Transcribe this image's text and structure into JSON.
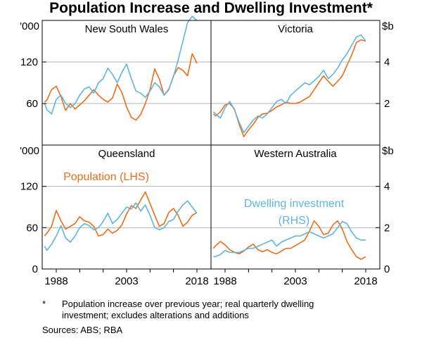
{
  "chart_data": {
    "type": "line",
    "title": "Population Increase and Dwelling Investment*",
    "left_unit": "'000",
    "right_unit": "$b",
    "left_ticks": [
      "0",
      "60",
      "120"
    ],
    "right_ticks": [
      "0",
      "2",
      "4"
    ],
    "left_axis_range": [
      0,
      180
    ],
    "right_axis_range": [
      0,
      6
    ],
    "x_ticks": [
      "1988",
      "2003",
      "2018"
    ],
    "x_axis_range": [
      1985,
      2021
    ],
    "colors": {
      "population": "#ee6c1a",
      "dwelling": "#5db6dc",
      "grid": "#b4b4b4"
    },
    "annotations": {
      "population": "Population (LHS)",
      "dwelling_line1": "Dwelling investment",
      "dwelling_line2": "(RHS)"
    },
    "panels": [
      {
        "name": "New South Wales",
        "series": [
          {
            "name": "Population",
            "axis": "left",
            "x": [
              1985.5,
              1986,
              1987,
              1988,
              1989,
              1990,
              1991,
              1992,
              1993,
              1994,
              1995,
              1996,
              1997,
              1998,
              1999,
              2000,
              2001,
              2002,
              2003,
              2004,
              2005,
              2006,
              2007,
              2008,
              2009,
              2010,
              2011,
              2012,
              2013,
              2014,
              2015,
              2016,
              2017,
              2018
            ],
            "y": [
              62,
              65,
              80,
              85,
              70,
              50,
              60,
              52,
              58,
              64,
              72,
              80,
              72,
              66,
              62,
              68,
              88,
              76,
              55,
              40,
              36,
              44,
              60,
              80,
              110,
              95,
              72,
              80,
              100,
              112,
              108,
              100,
              132,
              118
            ]
          },
          {
            "name": "Dwelling investment",
            "axis": "right",
            "x": [
              1985.5,
              1986,
              1987,
              1988,
              1989,
              1990,
              1991,
              1992,
              1993,
              1994,
              1995,
              1996,
              1997,
              1998,
              1999,
              2000,
              2001,
              2002,
              2003,
              2004,
              2005,
              2006,
              2007,
              2008,
              2009,
              2010,
              2011,
              2012,
              2013,
              2014,
              2015,
              2016,
              2017,
              2018
            ],
            "y": [
              2.0,
              1.7,
              1.5,
              2.2,
              2.4,
              2.0,
              1.8,
              2.0,
              2.4,
              2.7,
              2.8,
              2.5,
              3.0,
              3.2,
              3.7,
              3.4,
              3.0,
              3.5,
              3.9,
              3.2,
              2.6,
              2.5,
              2.3,
              2.6,
              3.0,
              2.8,
              2.4,
              2.7,
              3.3,
              4.1,
              5.0,
              5.9,
              6.2,
              6.0
            ]
          }
        ]
      },
      {
        "name": "Victoria",
        "series": [
          {
            "name": "Population",
            "axis": "left",
            "x": [
              1985.5,
              1986,
              1987,
              1988,
              1989,
              1990,
              1991,
              1992,
              1993,
              1994,
              1995,
              1996,
              1997,
              1998,
              1999,
              2000,
              2001,
              2002,
              2003,
              2004,
              2005,
              2006,
              2007,
              2008,
              2009,
              2010,
              2011,
              2012,
              2013,
              2014,
              2015,
              2016,
              2017,
              2018
            ],
            "y": [
              45,
              42,
              48,
              58,
              60,
              52,
              30,
              12,
              22,
              30,
              40,
              45,
              46,
              50,
              55,
              58,
              62,
              60,
              60,
              62,
              66,
              70,
              80,
              90,
              100,
              92,
              85,
              92,
              100,
              115,
              130,
              148,
              152,
              150
            ]
          },
          {
            "name": "Dwelling investment",
            "axis": "right",
            "x": [
              1985.5,
              1986,
              1987,
              1988,
              1989,
              1990,
              1991,
              1992,
              1993,
              1994,
              1995,
              1996,
              1997,
              1998,
              1999,
              2000,
              2001,
              2002,
              2003,
              2004,
              2005,
              2006,
              2007,
              2008,
              2009,
              2010,
              2011,
              2012,
              2013,
              2014,
              2015,
              2016,
              2017,
              2018
            ],
            "y": [
              1.6,
              1.5,
              1.3,
              1.8,
              2.1,
              1.7,
              1.1,
              0.6,
              0.9,
              1.2,
              1.4,
              1.3,
              1.5,
              1.8,
              2.1,
              2.2,
              2.0,
              2.4,
              2.6,
              2.8,
              3.0,
              2.9,
              3.1,
              3.3,
              3.6,
              3.2,
              3.4,
              3.7,
              4.1,
              4.4,
              4.8,
              5.2,
              5.3,
              5.0
            ]
          }
        ]
      },
      {
        "name": "Queensland",
        "series": [
          {
            "name": "Population",
            "axis": "left",
            "x": [
              1985.5,
              1986,
              1987,
              1988,
              1989,
              1990,
              1991,
              1992,
              1993,
              1994,
              1995,
              1996,
              1997,
              1998,
              1999,
              2000,
              2001,
              2002,
              2003,
              2004,
              2005,
              2006,
              2007,
              2008,
              2009,
              2010,
              2011,
              2012,
              2013,
              2014,
              2015,
              2016,
              2017,
              2018
            ],
            "y": [
              48,
              52,
              62,
              85,
              70,
              58,
              62,
              66,
              76,
              70,
              68,
              62,
              48,
              50,
              58,
              52,
              56,
              64,
              80,
              92,
              88,
              100,
              112,
              95,
              78,
              62,
              66,
              82,
              88,
              78,
              62,
              68,
              78,
              82
            ]
          },
          {
            "name": "Dwelling investment",
            "axis": "right",
            "x": [
              1985.5,
              1986,
              1987,
              1988,
              1989,
              1990,
              1991,
              1992,
              1993,
              1994,
              1995,
              1996,
              1997,
              1998,
              1999,
              2000,
              2001,
              2002,
              2003,
              2004,
              2005,
              2006,
              2007,
              2008,
              2009,
              2010,
              2011,
              2012,
              2013,
              2014,
              2015,
              2016,
              2017,
              2018
            ],
            "y": [
              1.1,
              0.9,
              1.2,
              1.6,
              2.1,
              1.5,
              1.3,
              1.6,
              2.0,
              2.2,
              2.1,
              1.9,
              2.0,
              2.3,
              2.7,
              2.2,
              2.4,
              2.7,
              3.0,
              2.9,
              3.2,
              2.8,
              3.1,
              2.6,
              2.0,
              1.9,
              2.0,
              2.3,
              2.4,
              2.8,
              3.1,
              3.3,
              3.0,
              2.7
            ]
          }
        ]
      },
      {
        "name": "Western Australia",
        "series": [
          {
            "name": "Population",
            "axis": "left",
            "x": [
              1985.5,
              1986,
              1987,
              1988,
              1989,
              1990,
              1991,
              1992,
              1993,
              1994,
              1995,
              1996,
              1997,
              1998,
              1999,
              2000,
              2001,
              2002,
              2003,
              2004,
              2005,
              2006,
              2007,
              2008,
              2009,
              2010,
              2011,
              2012,
              2013,
              2014,
              2015,
              2016,
              2017,
              2018
            ],
            "y": [
              30,
              34,
              40,
              35,
              28,
              24,
              22,
              26,
              32,
              36,
              28,
              25,
              28,
              24,
              22,
              26,
              30,
              30,
              34,
              38,
              42,
              55,
              70,
              62,
              50,
              52,
              64,
              70,
              58,
              40,
              28,
              18,
              14,
              18
            ]
          },
          {
            "name": "Dwelling investment",
            "axis": "right",
            "x": [
              1985.5,
              1986,
              1987,
              1988,
              1989,
              1990,
              1991,
              1992,
              1993,
              1994,
              1995,
              1996,
              1997,
              1998,
              1999,
              2000,
              2001,
              2002,
              2003,
              2004,
              2005,
              2006,
              2007,
              2008,
              2009,
              2010,
              2011,
              2012,
              2013,
              2014,
              2015,
              2016,
              2017,
              2018
            ],
            "y": [
              0.6,
              0.6,
              0.7,
              0.9,
              0.8,
              0.8,
              0.8,
              0.9,
              1.0,
              1.0,
              1.1,
              1.2,
              1.3,
              1.4,
              1.1,
              1.3,
              1.4,
              1.5,
              1.6,
              1.6,
              1.7,
              1.8,
              1.7,
              1.6,
              1.5,
              1.6,
              1.7,
              2.0,
              2.3,
              2.2,
              1.8,
              1.5,
              1.4,
              1.4
            ]
          }
        ]
      }
    ]
  },
  "footnote": {
    "marker": "*",
    "line1": "Population increase over previous year; real quarterly dwelling",
    "line2": "investment; excludes alterations and additions"
  },
  "sources": "Sources:   ABS; RBA"
}
